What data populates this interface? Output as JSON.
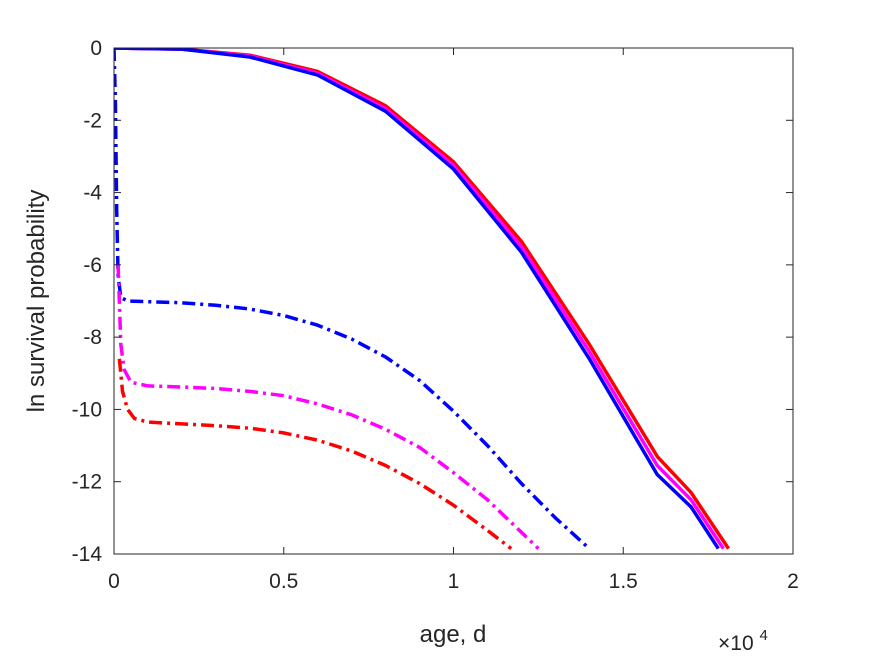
{
  "chart_data": {
    "type": "line",
    "xlabel": "age, d",
    "ylabel": "ln survival probability",
    "x_exponent_label": {
      "times": "×10",
      "power": "4"
    },
    "xlim": [
      0,
      20000
    ],
    "ylim": [
      -14,
      0
    ],
    "x_ticks": [
      0,
      5000,
      10000,
      15000,
      20000
    ],
    "x_tick_labels": [
      "0",
      "0.5",
      "1",
      "1.5",
      "2"
    ],
    "y_ticks": [
      0,
      -2,
      -4,
      -6,
      -8,
      -10,
      -12,
      -14
    ],
    "y_tick_labels": [
      "0",
      "-2",
      "-4",
      "-6",
      "-8",
      "-10",
      "-12",
      "-14"
    ],
    "grid": false,
    "box": true,
    "series": [
      {
        "color": "#ff0000",
        "style": "solid",
        "x": [
          0,
          2000,
          4000,
          6000,
          8000,
          10000,
          12000,
          14000,
          16000,
          17000,
          18100
        ],
        "y": [
          0,
          -0.03,
          -0.2,
          -0.65,
          -1.6,
          -3.15,
          -5.35,
          -8.2,
          -11.3,
          -12.3,
          -13.85
        ]
      },
      {
        "color": "#ff00ff",
        "style": "solid",
        "x": [
          0,
          2000,
          4000,
          6000,
          8000,
          10000,
          12000,
          14000,
          16000,
          17000,
          17950
        ],
        "y": [
          0,
          -0.03,
          -0.22,
          -0.7,
          -1.68,
          -3.25,
          -5.5,
          -8.4,
          -11.55,
          -12.5,
          -13.85
        ]
      },
      {
        "color": "#0000ff",
        "style": "solid",
        "x": [
          0,
          2000,
          4000,
          6000,
          8000,
          10000,
          12000,
          14000,
          16000,
          17000,
          17800
        ],
        "y": [
          0,
          -0.03,
          -0.25,
          -0.75,
          -1.75,
          -3.35,
          -5.65,
          -8.6,
          -11.8,
          -12.7,
          -13.85
        ]
      },
      {
        "color": "#0000ff",
        "style": "dashdot",
        "x": [
          0,
          40,
          80,
          120,
          200,
          400,
          1000,
          2000,
          3000,
          4000,
          5000,
          6000,
          7000,
          8000,
          9000,
          10000,
          11000,
          12000,
          13000,
          14000
        ],
        "y": [
          0,
          -1.5,
          -4.5,
          -6.3,
          -6.9,
          -7.0,
          -7.02,
          -7.05,
          -7.12,
          -7.22,
          -7.4,
          -7.67,
          -8.05,
          -8.55,
          -9.2,
          -10.05,
          -11.0,
          -12.05,
          -13.0,
          -13.85
        ]
      },
      {
        "color": "#ff00ff",
        "style": "dashdot",
        "x": [
          120,
          200,
          300,
          500,
          1000,
          2000,
          3000,
          4000,
          5000,
          6000,
          7000,
          8000,
          9000,
          10000,
          11000,
          12000,
          12500
        ],
        "y": [
          -6.0,
          -8.2,
          -8.9,
          -9.25,
          -9.35,
          -9.38,
          -9.42,
          -9.5,
          -9.62,
          -9.85,
          -10.15,
          -10.55,
          -11.05,
          -11.75,
          -12.5,
          -13.4,
          -13.85
        ]
      },
      {
        "color": "#ff0000",
        "style": "dashdot",
        "x": [
          160,
          250,
          400,
          600,
          1000,
          2000,
          3000,
          4000,
          5000,
          6000,
          7000,
          8000,
          9000,
          10000,
          11000,
          11700
        ],
        "y": [
          -8.6,
          -9.5,
          -10.0,
          -10.25,
          -10.35,
          -10.4,
          -10.45,
          -10.52,
          -10.65,
          -10.85,
          -11.15,
          -11.55,
          -12.05,
          -12.65,
          -13.35,
          -13.85
        ]
      }
    ]
  }
}
